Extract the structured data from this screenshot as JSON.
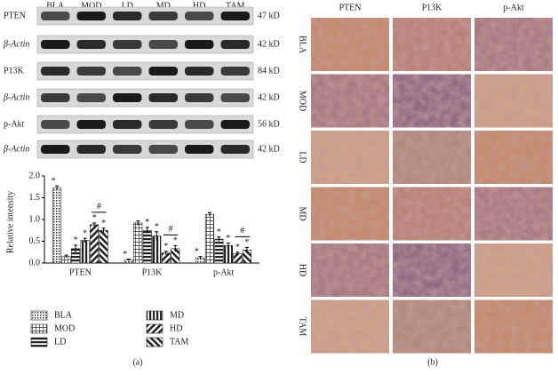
{
  "blot": {
    "lanes": [
      "BLA",
      "MOD",
      "LD",
      "MD",
      "HD",
      "TAM"
    ],
    "rows": [
      {
        "label": "PTEN",
        "size": "47 kD"
      },
      {
        "label": "β-Actin",
        "size": "42 kD"
      },
      {
        "label": "P13K",
        "size": "84 kD"
      },
      {
        "label": "β-Actin",
        "size": "42 kD"
      },
      {
        "label": "p-Akt",
        "size": "56 kD"
      },
      {
        "label": "β-Actin",
        "size": "42 kD"
      }
    ]
  },
  "chart_data": {
    "type": "bar",
    "ylabel": "Relative intensity",
    "categories": [
      "PTEN",
      "P13K",
      "p-Akt"
    ],
    "ylim": [
      0,
      2
    ],
    "yticks": [
      {
        "value": 0,
        "label": "0.0"
      },
      {
        "value": 0.5,
        "label": "0.5"
      },
      {
        "value": 1,
        "label": "1.0"
      },
      {
        "value": 1.5,
        "label": "1.5"
      },
      {
        "value": 2,
        "label": "2.0"
      }
    ],
    "series": [
      {
        "name": "BLA",
        "pattern": "dots",
        "marker": "*",
        "values": [
          1.72,
          0.07,
          0.12
        ],
        "errors": [
          0.05,
          0.02,
          0.03
        ]
      },
      {
        "name": "MOD",
        "pattern": "grid",
        "marker": null,
        "values": [
          0.15,
          0.92,
          1.12
        ],
        "errors": [
          0.03,
          0.05,
          0.04
        ]
      },
      {
        "name": "LD",
        "pattern": "hlines",
        "marker": "*",
        "values": [
          0.33,
          0.75,
          0.55
        ],
        "errors": [
          0.08,
          0.07,
          0.05
        ]
      },
      {
        "name": "MD",
        "pattern": "vlines",
        "marker": "*",
        "values": [
          0.52,
          0.62,
          0.4
        ],
        "errors": [
          0.05,
          0.1,
          0.06
        ]
      },
      {
        "name": "HD",
        "pattern": "diag",
        "marker": "*",
        "values": [
          0.88,
          0.23,
          0.22
        ],
        "errors": [
          0.04,
          0.04,
          0.03
        ]
      },
      {
        "name": "TAM",
        "pattern": "rdiag",
        "marker": "*",
        "values": [
          0.75,
          0.33,
          0.3
        ],
        "errors": [
          0.05,
          0.07,
          0.06
        ]
      }
    ],
    "bracket_label": "#",
    "panel_label": "(a)"
  },
  "ihc": {
    "columns": [
      "PTEN",
      "P13K",
      "p-Akt"
    ],
    "rows": [
      "BLA",
      "MOD",
      "LD",
      "MD",
      "HD",
      "TAM"
    ],
    "panel_label": "(b)"
  }
}
